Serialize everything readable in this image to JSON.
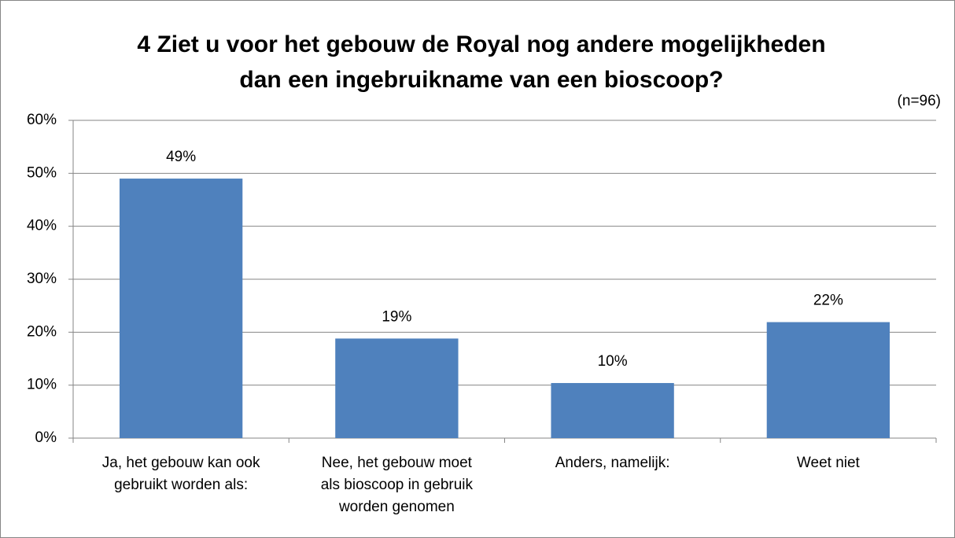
{
  "chart_data": {
    "type": "bar",
    "title": [
      "4 Ziet u voor het gebouw de Royal nog andere mogelijkheden",
      "dan een ingebruikname van een bioscoop?"
    ],
    "subtitle": "(n=96)",
    "categories": [
      [
        "Ja, het gebouw kan ook",
        "gebruikt worden als:"
      ],
      [
        "Nee, het gebouw moet",
        "als bioscoop in gebruik",
        "worden genomen"
      ],
      [
        "Anders, namelijk:"
      ],
      [
        "Weet niet"
      ]
    ],
    "values": [
      49,
      18.8,
      10.4,
      21.9
    ],
    "value_labels": [
      "49%",
      "19%",
      "10%",
      "22%"
    ],
    "color": "#4f81bd",
    "ylim": [
      0,
      60
    ],
    "yticks": [
      {
        "value": 0,
        "label": "0%"
      },
      {
        "value": 10,
        "label": "10%"
      },
      {
        "value": 20,
        "label": "20%"
      },
      {
        "value": 30,
        "label": "30%"
      },
      {
        "value": 40,
        "label": "40%"
      },
      {
        "value": 50,
        "label": "50%"
      },
      {
        "value": 60,
        "label": "60%"
      }
    ],
    "grid": true
  }
}
